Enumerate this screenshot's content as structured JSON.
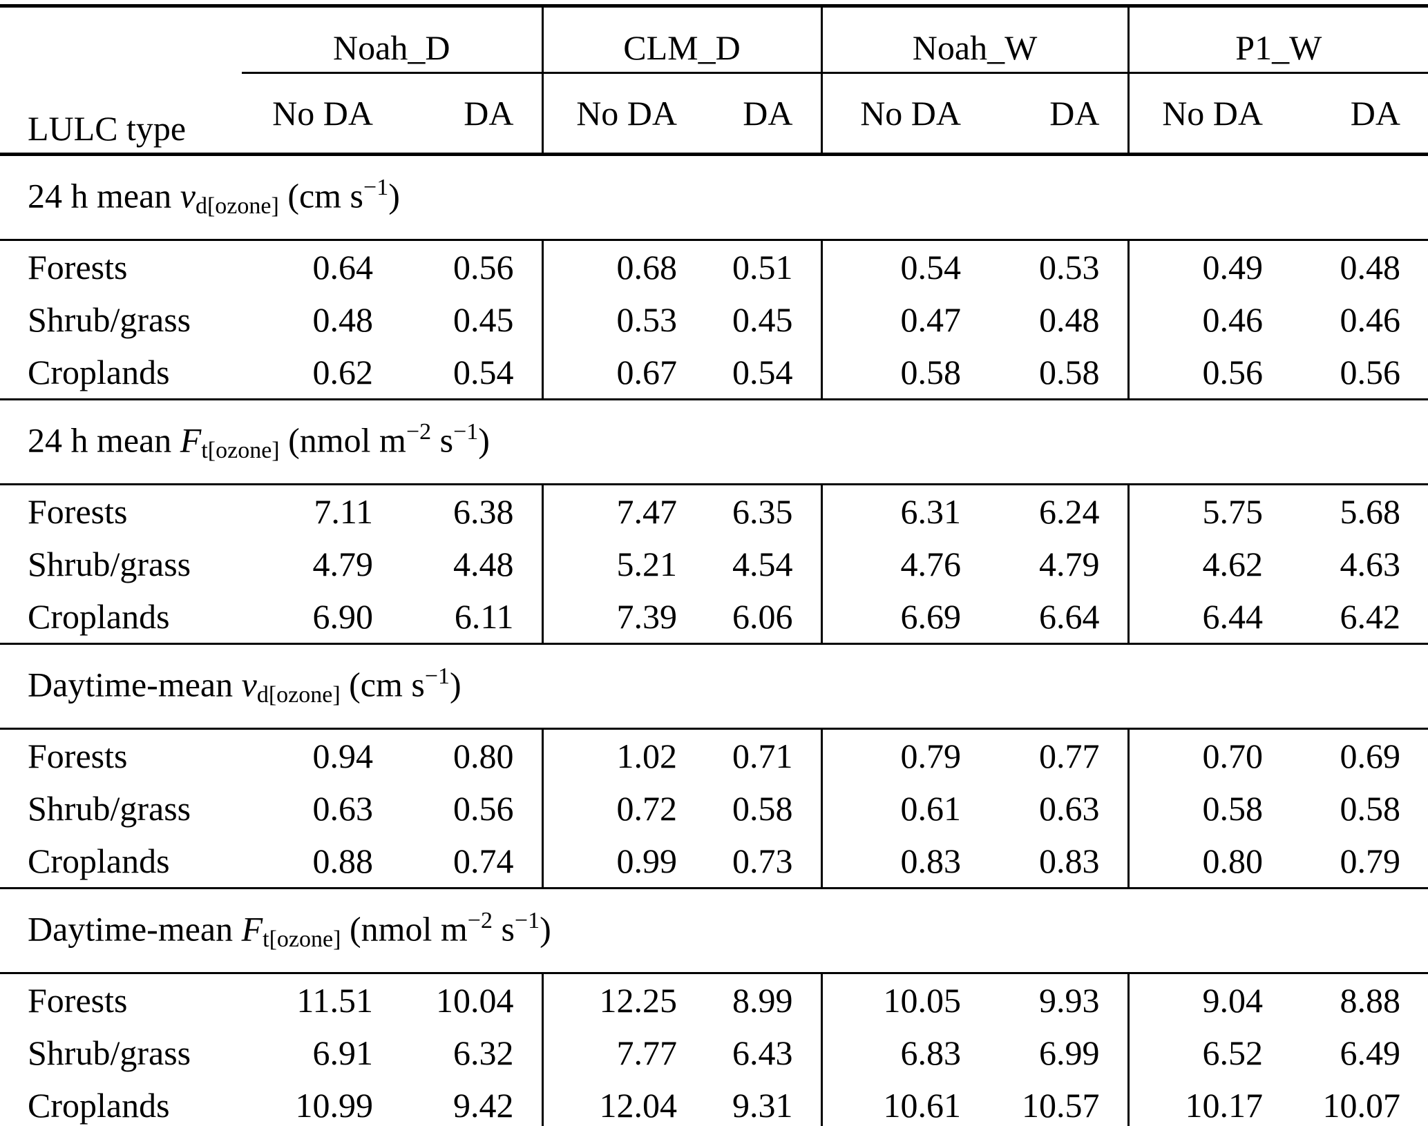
{
  "table": {
    "corner_label": "LULC type",
    "groups": [
      {
        "label": "Noah_D"
      },
      {
        "label": "CLM_D"
      },
      {
        "label": "Noah_W"
      },
      {
        "label": "P1_W"
      }
    ],
    "subheaders": {
      "no_da": "No DA",
      "da": "DA"
    },
    "sections": [
      {
        "title": {
          "prefix": "24 h mean ",
          "sym": "v",
          "sub": "d[ozone]",
          "u1": " (cm s",
          "s1": "−1",
          "u2": ")"
        },
        "rows": [
          {
            "label": "Forests",
            "values": [
              "0.64",
              "0.56",
              "0.68",
              "0.51",
              "0.54",
              "0.53",
              "0.49",
              "0.48"
            ]
          },
          {
            "label": "Shrub/grass",
            "values": [
              "0.48",
              "0.45",
              "0.53",
              "0.45",
              "0.47",
              "0.48",
              "0.46",
              "0.46"
            ]
          },
          {
            "label": "Croplands",
            "values": [
              "0.62",
              "0.54",
              "0.67",
              "0.54",
              "0.58",
              "0.58",
              "0.56",
              "0.56"
            ]
          }
        ]
      },
      {
        "title": {
          "prefix": "24 h mean ",
          "sym": "F",
          "sub": "t[ozone]",
          "u1": " (nmol m",
          "s1": "−2",
          "u2": " s",
          "s2": "−1",
          "u3": ")"
        },
        "rows": [
          {
            "label": "Forests",
            "values": [
              "7.11",
              "6.38",
              "7.47",
              "6.35",
              "6.31",
              "6.24",
              "5.75",
              "5.68"
            ]
          },
          {
            "label": "Shrub/grass",
            "values": [
              "4.79",
              "4.48",
              "5.21",
              "4.54",
              "4.76",
              "4.79",
              "4.62",
              "4.63"
            ]
          },
          {
            "label": "Croplands",
            "values": [
              "6.90",
              "6.11",
              "7.39",
              "6.06",
              "6.69",
              "6.64",
              "6.44",
              "6.42"
            ]
          }
        ]
      },
      {
        "title": {
          "prefix": "Daytime-mean ",
          "sym": "v",
          "sub": "d[ozone]",
          "u1": " (cm s",
          "s1": "−1",
          "u2": ")"
        },
        "rows": [
          {
            "label": "Forests",
            "values": [
              "0.94",
              "0.80",
              "1.02",
              "0.71",
              "0.79",
              "0.77",
              "0.70",
              "0.69"
            ]
          },
          {
            "label": "Shrub/grass",
            "values": [
              "0.63",
              "0.56",
              "0.72",
              "0.58",
              "0.61",
              "0.63",
              "0.58",
              "0.58"
            ]
          },
          {
            "label": "Croplands",
            "values": [
              "0.88",
              "0.74",
              "0.99",
              "0.73",
              "0.83",
              "0.83",
              "0.80",
              "0.79"
            ]
          }
        ]
      },
      {
        "title": {
          "prefix": "Daytime-mean ",
          "sym": "F",
          "sub": "t[ozone]",
          "u1": " (nmol m",
          "s1": "−2",
          "u2": " s",
          "s2": "−1",
          "u3": ")"
        },
        "rows": [
          {
            "label": "Forests",
            "values": [
              "11.51",
              "10.04",
              "12.25",
              "8.99",
              "10.05",
              "9.93",
              "9.04",
              "8.88"
            ]
          },
          {
            "label": "Shrub/grass",
            "values": [
              "6.91",
              "6.32",
              "7.77",
              "6.43",
              "6.83",
              "6.99",
              "6.52",
              "6.49"
            ]
          },
          {
            "label": "Croplands",
            "values": [
              "10.99",
              "9.42",
              "12.04",
              "9.31",
              "10.61",
              "10.57",
              "10.17",
              "10.07"
            ]
          }
        ]
      }
    ]
  },
  "chart_data": {
    "type": "table",
    "column_groups": [
      "Noah_D",
      "CLM_D",
      "Noah_W",
      "P1_W"
    ],
    "columns": [
      "LULC type",
      "Noah_D No DA",
      "Noah_D DA",
      "CLM_D No DA",
      "CLM_D DA",
      "Noah_W No DA",
      "Noah_W DA",
      "P1_W No DA",
      "P1_W DA"
    ],
    "sections": [
      {
        "title": "24 h mean v_d[ozone] (cm s−1)",
        "rows": [
          [
            "Forests",
            0.64,
            0.56,
            0.68,
            0.51,
            0.54,
            0.53,
            0.49,
            0.48
          ],
          [
            "Shrub/grass",
            0.48,
            0.45,
            0.53,
            0.45,
            0.47,
            0.48,
            0.46,
            0.46
          ],
          [
            "Croplands",
            0.62,
            0.54,
            0.67,
            0.54,
            0.58,
            0.58,
            0.56,
            0.56
          ]
        ]
      },
      {
        "title": "24 h mean F_t[ozone] (nmol m−2 s−1)",
        "rows": [
          [
            "Forests",
            7.11,
            6.38,
            7.47,
            6.35,
            6.31,
            6.24,
            5.75,
            5.68
          ],
          [
            "Shrub/grass",
            4.79,
            4.48,
            5.21,
            4.54,
            4.76,
            4.79,
            4.62,
            4.63
          ],
          [
            "Croplands",
            6.9,
            6.11,
            7.39,
            6.06,
            6.69,
            6.64,
            6.44,
            6.42
          ]
        ]
      },
      {
        "title": "Daytime-mean v_d[ozone] (cm s−1)",
        "rows": [
          [
            "Forests",
            0.94,
            0.8,
            1.02,
            0.71,
            0.79,
            0.77,
            0.7,
            0.69
          ],
          [
            "Shrub/grass",
            0.63,
            0.56,
            0.72,
            0.58,
            0.61,
            0.63,
            0.58,
            0.58
          ],
          [
            "Croplands",
            0.88,
            0.74,
            0.99,
            0.73,
            0.83,
            0.83,
            0.8,
            0.79
          ]
        ]
      },
      {
        "title": "Daytime-mean F_t[ozone] (nmol m−2 s−1)",
        "rows": [
          [
            "Forests",
            11.51,
            10.04,
            12.25,
            8.99,
            10.05,
            9.93,
            9.04,
            8.88
          ],
          [
            "Shrub/grass",
            6.91,
            6.32,
            7.77,
            6.43,
            6.83,
            6.99,
            6.52,
            6.49
          ],
          [
            "Croplands",
            10.99,
            9.42,
            12.04,
            9.31,
            10.61,
            10.57,
            10.17,
            10.07
          ]
        ]
      }
    ]
  }
}
